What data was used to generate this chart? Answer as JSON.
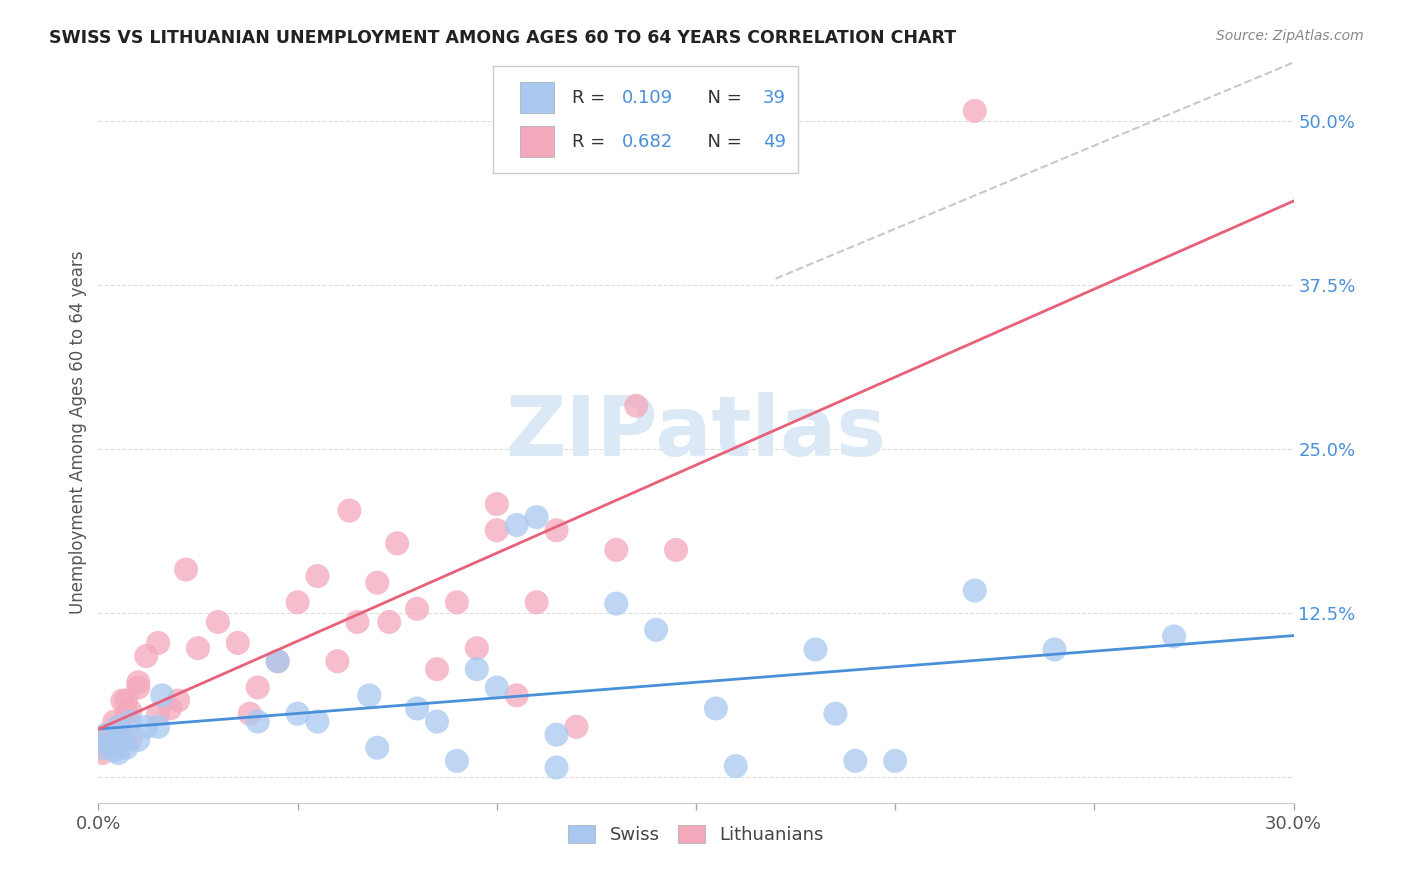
{
  "title": "SWISS VS LITHUANIAN UNEMPLOYMENT AMONG AGES 60 TO 64 YEARS CORRELATION CHART",
  "source": "Source: ZipAtlas.com",
  "ylabel": "Unemployment Among Ages 60 to 64 years",
  "xlim": [
    0.0,
    0.3
  ],
  "ylim": [
    -0.02,
    0.545
  ],
  "ytick_vals": [
    0.0,
    0.125,
    0.25,
    0.375,
    0.5
  ],
  "ytick_labels": [
    "",
    "12.5%",
    "25.0%",
    "37.5%",
    "50.0%"
  ],
  "xtick_vals": [
    0.0,
    0.05,
    0.1,
    0.15,
    0.2,
    0.25,
    0.3
  ],
  "xtick_labels": [
    "0.0%",
    "",
    "",
    "",
    "",
    "",
    "30.0%"
  ],
  "swiss_color": "#a8c8f0",
  "lith_color": "#f4a8bc",
  "swiss_line_color": "#4a90d9",
  "lith_line_color": "#e8607a",
  "diag_line_color": "#c8c8c8",
  "legend_blue": "#4a90d9",
  "legend_dark": "#333333",
  "r_swiss": "0.109",
  "n_swiss": "39",
  "r_lith": "0.682",
  "n_lith": "49",
  "swiss_x": [
    0.001,
    0.002,
    0.003,
    0.004,
    0.005,
    0.005,
    0.006,
    0.007,
    0.008,
    0.01,
    0.012,
    0.015,
    0.016,
    0.04,
    0.045,
    0.05,
    0.055,
    0.068,
    0.07,
    0.08,
    0.085,
    0.09,
    0.095,
    0.1,
    0.105,
    0.11,
    0.115,
    0.115,
    0.13,
    0.14,
    0.155,
    0.16,
    0.18,
    0.185,
    0.19,
    0.2,
    0.22,
    0.24,
    0.27
  ],
  "swiss_y": [
    0.022,
    0.032,
    0.025,
    0.02,
    0.038,
    0.018,
    0.028,
    0.022,
    0.042,
    0.028,
    0.038,
    0.038,
    0.062,
    0.042,
    0.088,
    0.048,
    0.042,
    0.062,
    0.022,
    0.052,
    0.042,
    0.012,
    0.082,
    0.068,
    0.192,
    0.198,
    0.032,
    0.007,
    0.132,
    0.112,
    0.052,
    0.008,
    0.097,
    0.048,
    0.012,
    0.012,
    0.142,
    0.097,
    0.107
  ],
  "lith_x": [
    0.001,
    0.002,
    0.003,
    0.003,
    0.004,
    0.005,
    0.005,
    0.006,
    0.007,
    0.007,
    0.008,
    0.008,
    0.01,
    0.01,
    0.012,
    0.015,
    0.015,
    0.018,
    0.02,
    0.022,
    0.025,
    0.03,
    0.035,
    0.038,
    0.04,
    0.045,
    0.05,
    0.055,
    0.06,
    0.063,
    0.065,
    0.07,
    0.073,
    0.075,
    0.08,
    0.085,
    0.09,
    0.095,
    0.1,
    0.1,
    0.105,
    0.11,
    0.115,
    0.12,
    0.13,
    0.135,
    0.145,
    0.22,
    0.001
  ],
  "lith_y": [
    0.018,
    0.032,
    0.028,
    0.022,
    0.042,
    0.038,
    0.03,
    0.058,
    0.048,
    0.058,
    0.028,
    0.05,
    0.068,
    0.072,
    0.092,
    0.102,
    0.048,
    0.052,
    0.058,
    0.158,
    0.098,
    0.118,
    0.102,
    0.048,
    0.068,
    0.088,
    0.133,
    0.153,
    0.088,
    0.203,
    0.118,
    0.148,
    0.118,
    0.178,
    0.128,
    0.082,
    0.133,
    0.098,
    0.208,
    0.188,
    0.062,
    0.133,
    0.188,
    0.038,
    0.173,
    0.283,
    0.173,
    0.508,
    0.025
  ],
  "background_color": "#ffffff",
  "title_color": "#222222",
  "source_color": "#888888",
  "ytick_color": "#4a90d9",
  "xtick_color": "#555555",
  "label_color": "#555555",
  "grid_color": "#dddddd",
  "watermark_color": "#dbe8f5"
}
